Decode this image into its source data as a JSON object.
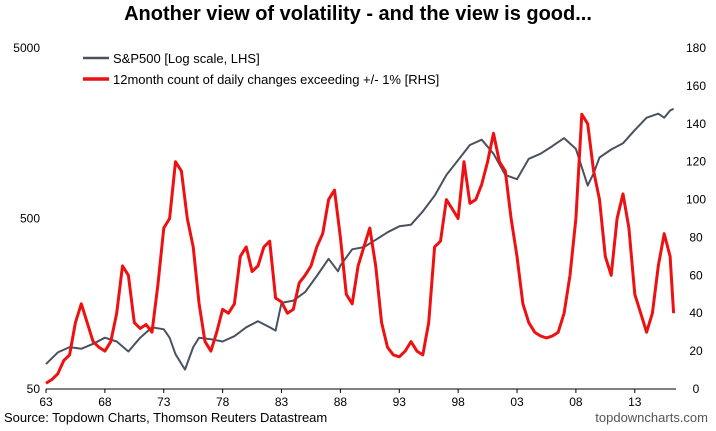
{
  "title": "Another view of volatility - and the view is good...",
  "source": "Source: Topdown Charts, Thomson Reuters Datastream",
  "credit": "topdowncharts.com",
  "colors": {
    "sp500": "#4a5260",
    "count": "#ee1111",
    "axis": "#000000"
  },
  "chart_data": {
    "type": "line",
    "title": "Another view of volatility - and the view is good...",
    "x_label": "",
    "x_ticks": [
      "63",
      "68",
      "73",
      "78",
      "83",
      "88",
      "93",
      "98",
      "03",
      "08",
      "13"
    ],
    "x_range": [
      1963,
      2016.5
    ],
    "y_left": {
      "label": "",
      "scale": "log",
      "range": [
        50,
        5000
      ],
      "ticks": [
        "5000",
        "500",
        "50"
      ]
    },
    "y_right": {
      "label": "",
      "range": [
        0,
        180
      ],
      "ticks": [
        "180",
        "160",
        "140",
        "120",
        "100",
        "80",
        "60",
        "40",
        "20",
        "0"
      ]
    },
    "grid": false,
    "legend_position": "top-left",
    "series": [
      {
        "name": "S&P500 [Log scale, LHS]",
        "axis": "left",
        "points": [
          [
            1963,
            70
          ],
          [
            1964,
            82
          ],
          [
            1965,
            88
          ],
          [
            1966,
            86
          ],
          [
            1967,
            92
          ],
          [
            1968,
            100
          ],
          [
            1969,
            95
          ],
          [
            1970,
            83
          ],
          [
            1971,
            100
          ],
          [
            1972,
            115
          ],
          [
            1973,
            112
          ],
          [
            1973.5,
            100
          ],
          [
            1974,
            80
          ],
          [
            1974.8,
            65
          ],
          [
            1975.5,
            88
          ],
          [
            1976,
            100
          ],
          [
            1977,
            98
          ],
          [
            1978,
            95
          ],
          [
            1979,
            102
          ],
          [
            1980,
            115
          ],
          [
            1981,
            125
          ],
          [
            1982,
            115
          ],
          [
            1982.5,
            110
          ],
          [
            1983,
            160
          ],
          [
            1984,
            165
          ],
          [
            1985,
            185
          ],
          [
            1986,
            230
          ],
          [
            1987,
            290
          ],
          [
            1987.8,
            245
          ],
          [
            1988,
            265
          ],
          [
            1989,
            330
          ],
          [
            1990,
            340
          ],
          [
            1991,
            375
          ],
          [
            1992,
            415
          ],
          [
            1993,
            450
          ],
          [
            1994,
            460
          ],
          [
            1995,
            550
          ],
          [
            1996,
            680
          ],
          [
            1997,
            900
          ],
          [
            1998,
            1100
          ],
          [
            1999,
            1350
          ],
          [
            2000,
            1450
          ],
          [
            2001,
            1200
          ],
          [
            2002,
            900
          ],
          [
            2003,
            850
          ],
          [
            2004,
            1120
          ],
          [
            2005,
            1200
          ],
          [
            2006,
            1330
          ],
          [
            2007,
            1480
          ],
          [
            2008,
            1280
          ],
          [
            2009,
            780
          ],
          [
            2009.5,
            920
          ],
          [
            2010,
            1140
          ],
          [
            2011,
            1270
          ],
          [
            2012,
            1380
          ],
          [
            2013,
            1650
          ],
          [
            2014,
            1950
          ],
          [
            2015,
            2060
          ],
          [
            2015.5,
            1950
          ],
          [
            2016,
            2150
          ],
          [
            2016.3,
            2200
          ]
        ]
      },
      {
        "name": "12month count of daily changes exceeding +/- 1% [RHS]",
        "axis": "right",
        "points": [
          [
            1963,
            3
          ],
          [
            1963.5,
            5
          ],
          [
            1964,
            8
          ],
          [
            1964.5,
            15
          ],
          [
            1965,
            18
          ],
          [
            1965.5,
            35
          ],
          [
            1966,
            45
          ],
          [
            1966.5,
            35
          ],
          [
            1967,
            25
          ],
          [
            1967.5,
            22
          ],
          [
            1968,
            20
          ],
          [
            1968.5,
            25
          ],
          [
            1969,
            40
          ],
          [
            1969.5,
            65
          ],
          [
            1970,
            60
          ],
          [
            1970.5,
            35
          ],
          [
            1971,
            32
          ],
          [
            1971.5,
            34
          ],
          [
            1972,
            30
          ],
          [
            1972.5,
            55
          ],
          [
            1973,
            85
          ],
          [
            1973.5,
            90
          ],
          [
            1974,
            120
          ],
          [
            1974.5,
            115
          ],
          [
            1975,
            90
          ],
          [
            1975.5,
            75
          ],
          [
            1976,
            45
          ],
          [
            1976.5,
            25
          ],
          [
            1977,
            20
          ],
          [
            1977.5,
            30
          ],
          [
            1978,
            42
          ],
          [
            1978.5,
            40
          ],
          [
            1979,
            45
          ],
          [
            1979.5,
            70
          ],
          [
            1980,
            75
          ],
          [
            1980.5,
            62
          ],
          [
            1981,
            65
          ],
          [
            1981.5,
            75
          ],
          [
            1982,
            78
          ],
          [
            1982.5,
            48
          ],
          [
            1983,
            46
          ],
          [
            1983.5,
            40
          ],
          [
            1984,
            42
          ],
          [
            1984.5,
            56
          ],
          [
            1985,
            60
          ],
          [
            1985.5,
            65
          ],
          [
            1986,
            75
          ],
          [
            1986.5,
            82
          ],
          [
            1987,
            100
          ],
          [
            1987.5,
            105
          ],
          [
            1988,
            80
          ],
          [
            1988.5,
            50
          ],
          [
            1989,
            45
          ],
          [
            1989.5,
            65
          ],
          [
            1990,
            75
          ],
          [
            1990.5,
            85
          ],
          [
            1991,
            65
          ],
          [
            1991.5,
            35
          ],
          [
            1992,
            22
          ],
          [
            1992.5,
            18
          ],
          [
            1993,
            17
          ],
          [
            1993.5,
            20
          ],
          [
            1994,
            25
          ],
          [
            1994.5,
            20
          ],
          [
            1995,
            18
          ],
          [
            1995.5,
            35
          ],
          [
            1996,
            75
          ],
          [
            1996.5,
            78
          ],
          [
            1997,
            100
          ],
          [
            1997.5,
            95
          ],
          [
            1998,
            90
          ],
          [
            1998.5,
            120
          ],
          [
            1999,
            98
          ],
          [
            1999.5,
            100
          ],
          [
            2000,
            108
          ],
          [
            2000.5,
            120
          ],
          [
            2001,
            135
          ],
          [
            2001.5,
            120
          ],
          [
            2002,
            115
          ],
          [
            2002.5,
            90
          ],
          [
            2003,
            70
          ],
          [
            2003.5,
            45
          ],
          [
            2004,
            35
          ],
          [
            2004.5,
            30
          ],
          [
            2005,
            28
          ],
          [
            2005.5,
            27
          ],
          [
            2006,
            28
          ],
          [
            2006.5,
            30
          ],
          [
            2007,
            40
          ],
          [
            2007.5,
            60
          ],
          [
            2008,
            90
          ],
          [
            2008.5,
            145
          ],
          [
            2009,
            140
          ],
          [
            2009.5,
            115
          ],
          [
            2010,
            100
          ],
          [
            2010.5,
            70
          ],
          [
            2011,
            60
          ],
          [
            2011.5,
            90
          ],
          [
            2012,
            103
          ],
          [
            2012.5,
            85
          ],
          [
            2013,
            50
          ],
          [
            2013.5,
            40
          ],
          [
            2014,
            30
          ],
          [
            2014.5,
            40
          ],
          [
            2015,
            65
          ],
          [
            2015.5,
            82
          ],
          [
            2016,
            70
          ],
          [
            2016.3,
            40
          ]
        ]
      }
    ]
  }
}
